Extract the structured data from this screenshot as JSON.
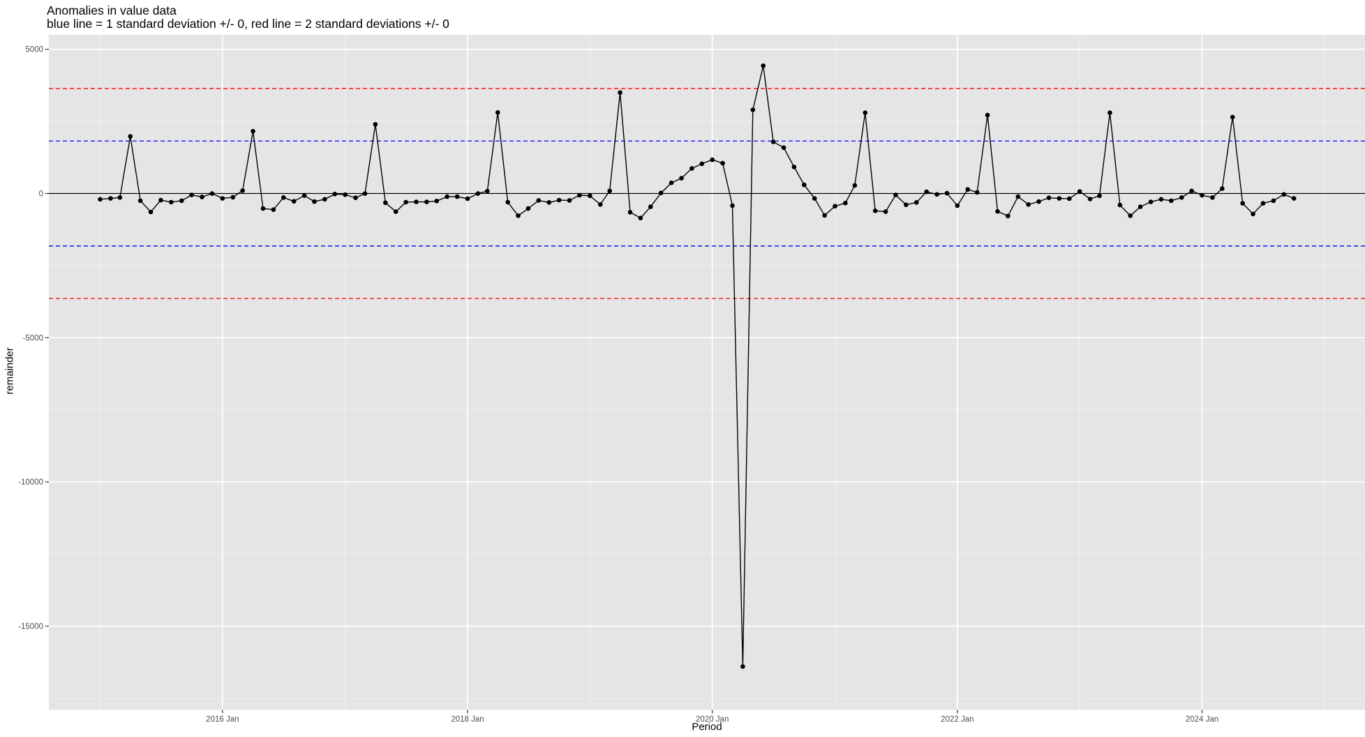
{
  "chart_data": {
    "type": "line",
    "title": "Anomalies in value data",
    "subtitle": "blue line = 1 standard deviation +/- 0, red line = 2 standard deviations +/- 0",
    "xlabel": "Period",
    "ylabel": "remainder",
    "x_start": "2015-01",
    "x_frequency": "monthly",
    "xlim": [
      "2014-08-01",
      "2025-05-01"
    ],
    "ylim": [
      -17900,
      5500
    ],
    "x_ticks": [
      {
        "date": "2016-01-01",
        "label": "2016 Jan"
      },
      {
        "date": "2018-01-01",
        "label": "2018 Jan"
      },
      {
        "date": "2020-01-01",
        "label": "2020 Jan"
      },
      {
        "date": "2022-01-01",
        "label": "2022 Jan"
      },
      {
        "date": "2024-01-01",
        "label": "2024 Jan"
      }
    ],
    "y_ticks": [
      5000,
      0,
      -5000,
      -10000,
      -15000
    ],
    "y_tick_labels": [
      "5000",
      "0",
      "-5000",
      "-10000",
      "-15000"
    ],
    "reference_lines": [
      {
        "y": 0,
        "color": "#000000",
        "style": "solid"
      },
      {
        "y": 1820,
        "color": "#0000ff",
        "style": "dashed"
      },
      {
        "y": -1820,
        "color": "#0000ff",
        "style": "dashed"
      },
      {
        "y": 3640,
        "color": "#ff0000",
        "style": "dashed"
      },
      {
        "y": -3640,
        "color": "#ff0000",
        "style": "dashed"
      }
    ],
    "grid": true,
    "series": [
      {
        "color": "#000000",
        "values": [
          -200,
          -170,
          -140,
          1980,
          -250,
          -640,
          -230,
          -300,
          -250,
          -50,
          -120,
          0,
          -170,
          -130,
          100,
          2160,
          -520,
          -560,
          -140,
          -270,
          -70,
          -280,
          -200,
          -20,
          -40,
          -150,
          0,
          2400,
          -320,
          -630,
          -300,
          -290,
          -290,
          -260,
          -110,
          -110,
          -180,
          0,
          80,
          2810,
          -300,
          -770,
          -520,
          -240,
          -310,
          -230,
          -240,
          -60,
          -80,
          -380,
          90,
          3500,
          -650,
          -850,
          -460,
          20,
          370,
          530,
          870,
          1030,
          1170,
          1050,
          -420,
          -16400,
          2900,
          4430,
          1790,
          1590,
          920,
          300,
          -170,
          -760,
          -440,
          -330,
          280,
          2800,
          -600,
          -630,
          -50,
          -390,
          -310,
          60,
          -30,
          10,
          -420,
          140,
          40,
          2720,
          -620,
          -780,
          -110,
          -380,
          -280,
          -150,
          -170,
          -180,
          70,
          -190,
          -80,
          2800,
          -400,
          -770,
          -460,
          -290,
          -200,
          -250,
          -140,
          90,
          -60,
          -140,
          170,
          2650,
          -340,
          -710,
          -340,
          -250,
          -30,
          -170
        ]
      }
    ]
  }
}
